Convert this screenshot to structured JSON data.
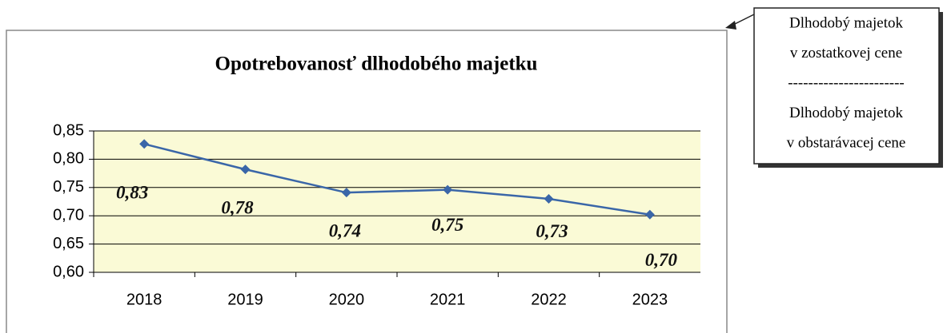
{
  "chart_data": {
    "type": "line",
    "title": "Opotrebovanosť dlhodobého majetku",
    "categories": [
      "2018",
      "2019",
      "2020",
      "2021",
      "2022",
      "2023"
    ],
    "series": [
      {
        "name": "Opotrebovanosť",
        "color": "#3a66a8",
        "values": [
          0.827,
          0.782,
          0.741,
          0.746,
          0.73,
          0.702
        ],
        "value_labels": [
          "0,83",
          "0,78",
          "0,74",
          "0,75",
          "0,73",
          "0,70"
        ]
      }
    ],
    "ylim": [
      0.6,
      0.85
    ],
    "yticks": [
      {
        "value": 0.6,
        "label": "0,60"
      },
      {
        "value": 0.65,
        "label": "0,65"
      },
      {
        "value": 0.7,
        "label": "0,70"
      },
      {
        "value": 0.75,
        "label": "0,75"
      },
      {
        "value": 0.8,
        "label": "0,80"
      },
      {
        "value": 0.85,
        "label": "0,85"
      }
    ],
    "grid": true,
    "annotation": {
      "lines": [
        "Dlhodobý majetok",
        "v zostatkovej cene",
        "-----------------------",
        "Dlhodobý majetok",
        "v obstarávacej cene"
      ]
    }
  }
}
